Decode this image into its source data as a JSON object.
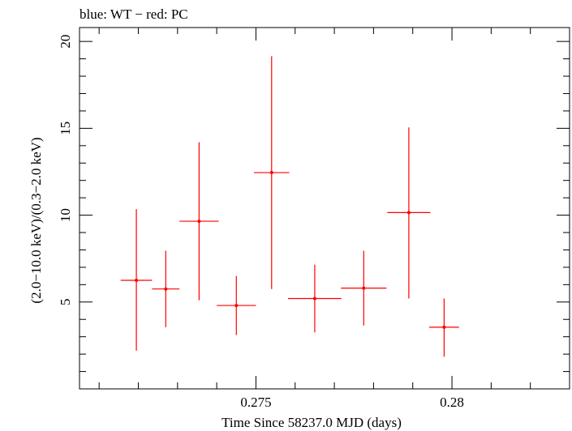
{
  "chart_data": {
    "type": "scatter",
    "title": "blue: WT − red: PC",
    "xlabel": "Time Since 58237.0 MJD (days)",
    "ylabel": "(2.0−10.0 keV)/(0.3−2.0 keV)",
    "xlim": [
      0.2705,
      0.283
    ],
    "ylim": [
      0,
      20.8
    ],
    "x_major_ticks": [
      0.275,
      0.28
    ],
    "x_tick_labels": [
      "0.275",
      "0.28"
    ],
    "x_minor_step": 0.001,
    "y_major_ticks": [
      5,
      10,
      15,
      20
    ],
    "y_tick_labels": [
      "5",
      "10",
      "15",
      "20"
    ],
    "y_minor_step": 1,
    "grid": false,
    "series": [
      {
        "name": "PC",
        "color": "#ff0000",
        "points": [
          {
            "x": 0.27195,
            "xerr": 0.0004,
            "y": 6.25,
            "ylo": 2.2,
            "yhi": 10.35
          },
          {
            "x": 0.2727,
            "xerr": 0.00035,
            "y": 5.75,
            "ylo": 3.55,
            "yhi": 7.95
          },
          {
            "x": 0.27355,
            "xerr": 0.0005,
            "y": 9.65,
            "ylo": 5.1,
            "yhi": 14.2
          },
          {
            "x": 0.2745,
            "xerr": 0.0005,
            "y": 4.8,
            "ylo": 3.1,
            "yhi": 6.5
          },
          {
            "x": 0.2754,
            "xerr": 0.00045,
            "y": 12.45,
            "ylo": 5.75,
            "yhi": 19.15
          },
          {
            "x": 0.2765,
            "xerr": 0.00068,
            "y": 5.2,
            "ylo": 3.25,
            "yhi": 7.15
          },
          {
            "x": 0.27775,
            "xerr": 0.00058,
            "y": 5.8,
            "ylo": 3.65,
            "yhi": 7.95
          },
          {
            "x": 0.2789,
            "xerr": 0.00055,
            "y": 10.15,
            "ylo": 5.2,
            "yhi": 15.05
          },
          {
            "x": 0.2798,
            "xerr": 0.00038,
            "y": 3.55,
            "ylo": 1.85,
            "yhi": 5.2
          }
        ]
      }
    ]
  }
}
